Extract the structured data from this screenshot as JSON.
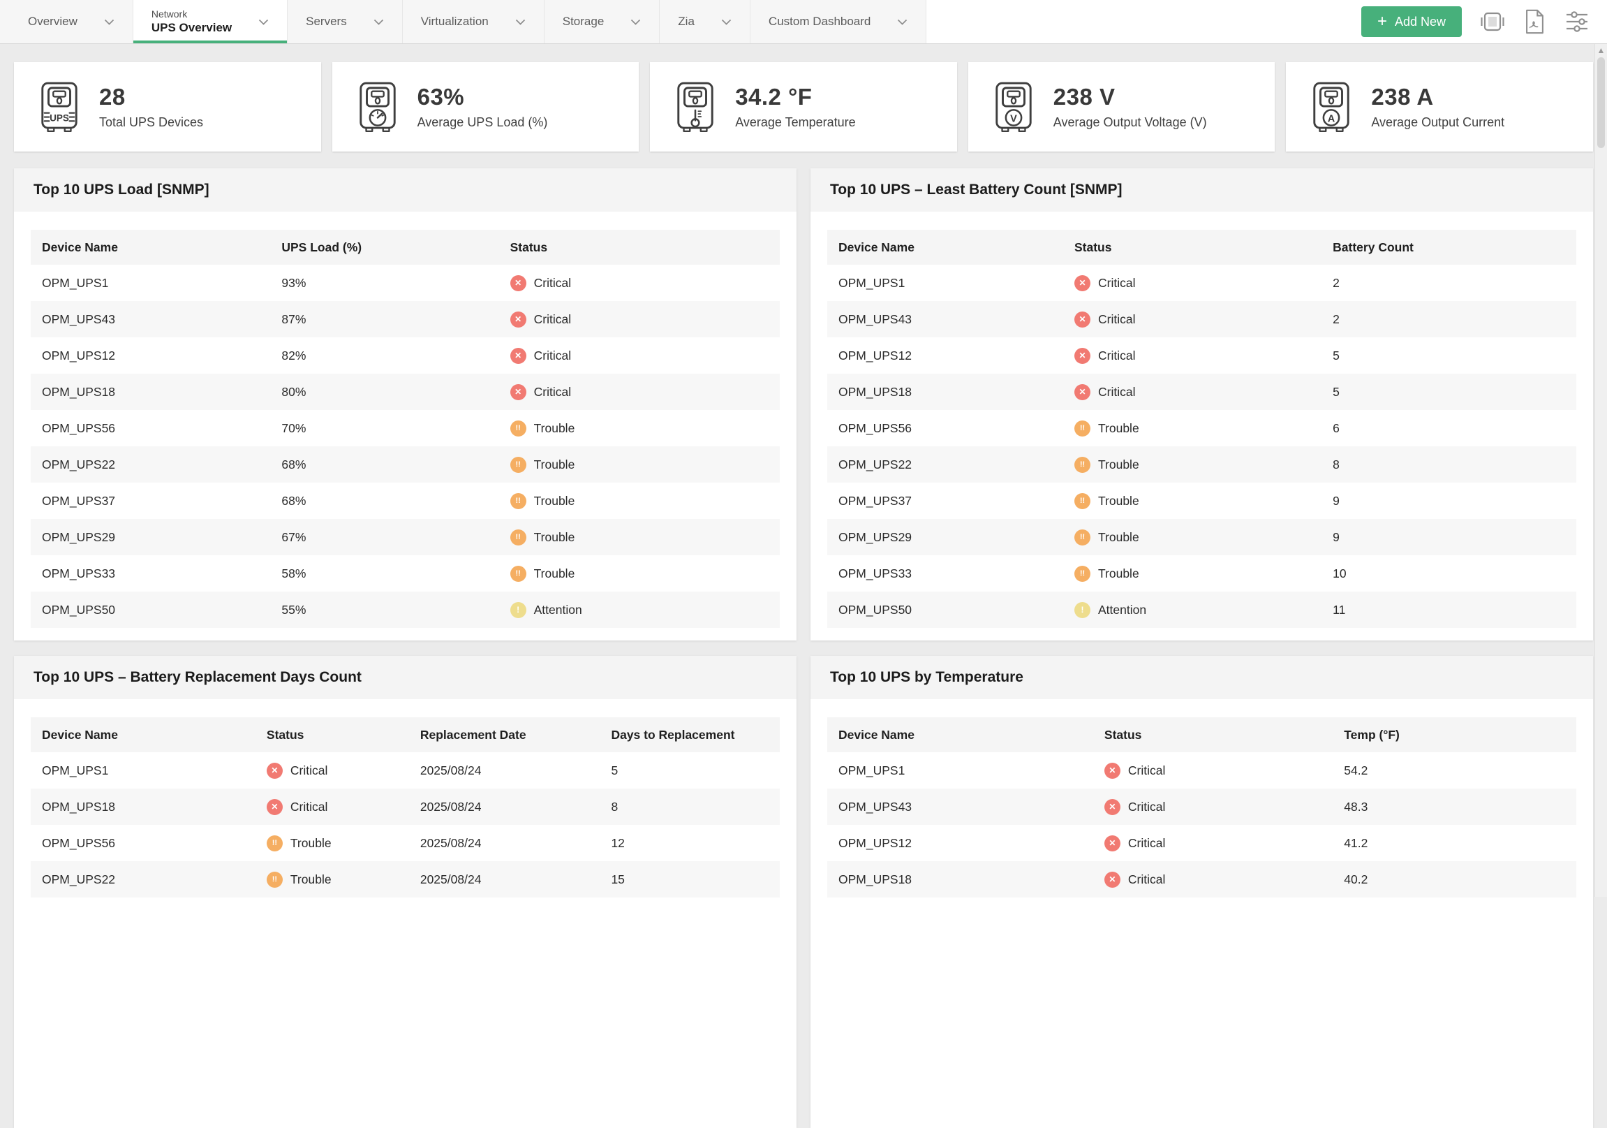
{
  "nav": {
    "accent_green": "#47b07b",
    "tabs": [
      {
        "label": "Overview"
      },
      {
        "super": "Network",
        "label": "UPS Overview",
        "active": true
      },
      {
        "label": "Servers"
      },
      {
        "label": "Virtualization"
      },
      {
        "label": "Storage"
      },
      {
        "label": "Zia"
      },
      {
        "label": "Custom Dashboard"
      }
    ],
    "add_new": {
      "plus": "+",
      "label": "Add New"
    }
  },
  "summary_cards": [
    {
      "value": "28",
      "label": "Total UPS Devices",
      "icon": "ups-device-icon",
      "icon_text": "UPS"
    },
    {
      "value": "63%",
      "label": "Average UPS Load (%)",
      "icon": "ups-load-gauge-icon",
      "icon_text": ""
    },
    {
      "value": "34.2 °F",
      "label": "Average Temperature",
      "icon": "ups-temperature-icon",
      "icon_text": ""
    },
    {
      "value": "238 V",
      "label": "Average Output Voltage (V)",
      "icon": "ups-voltage-icon",
      "icon_text": "V"
    },
    {
      "value": "238 A",
      "label": "Average Output Current",
      "icon": "ups-current-icon",
      "icon_text": "A"
    }
  ],
  "status_icons": {
    "Critical": {
      "glyph": "✕",
      "color": "#f17a72"
    },
    "Trouble": {
      "glyph": "!!",
      "color": "#f5ae62"
    },
    "Attention": {
      "glyph": "!",
      "color": "#eedd8d"
    }
  },
  "panels": [
    {
      "title": "Top 10 UPS Load [SNMP]",
      "columns": [
        "Device Name",
        "UPS Load (%)",
        "Status"
      ],
      "rows": [
        [
          {
            "type": "text",
            "value": "OPM_UPS1"
          },
          {
            "type": "text",
            "value": "93%"
          },
          {
            "type": "status",
            "value": "Critical"
          }
        ],
        [
          {
            "type": "text",
            "value": "OPM_UPS43"
          },
          {
            "type": "text",
            "value": "87%"
          },
          {
            "type": "status",
            "value": "Critical"
          }
        ],
        [
          {
            "type": "text",
            "value": "OPM_UPS12"
          },
          {
            "type": "text",
            "value": "82%"
          },
          {
            "type": "status",
            "value": "Critical"
          }
        ],
        [
          {
            "type": "text",
            "value": "OPM_UPS18"
          },
          {
            "type": "text",
            "value": "80%"
          },
          {
            "type": "status",
            "value": "Critical"
          }
        ],
        [
          {
            "type": "text",
            "value": "OPM_UPS56"
          },
          {
            "type": "text",
            "value": "70%"
          },
          {
            "type": "status",
            "value": "Trouble"
          }
        ],
        [
          {
            "type": "text",
            "value": "OPM_UPS22"
          },
          {
            "type": "text",
            "value": "68%"
          },
          {
            "type": "status",
            "value": "Trouble"
          }
        ],
        [
          {
            "type": "text",
            "value": "OPM_UPS37"
          },
          {
            "type": "text",
            "value": "68%"
          },
          {
            "type": "status",
            "value": "Trouble"
          }
        ],
        [
          {
            "type": "text",
            "value": "OPM_UPS29"
          },
          {
            "type": "text",
            "value": "67%"
          },
          {
            "type": "status",
            "value": "Trouble"
          }
        ],
        [
          {
            "type": "text",
            "value": "OPM_UPS33"
          },
          {
            "type": "text",
            "value": "58%"
          },
          {
            "type": "status",
            "value": "Trouble"
          }
        ],
        [
          {
            "type": "text",
            "value": "OPM_UPS50"
          },
          {
            "type": "text",
            "value": "55%"
          },
          {
            "type": "status",
            "value": "Attention"
          }
        ]
      ]
    },
    {
      "title": "Top 10 UPS – Least Battery Count [SNMP]",
      "columns": [
        "Device Name",
        "Status",
        "Battery Count"
      ],
      "rows": [
        [
          {
            "type": "text",
            "value": "OPM_UPS1"
          },
          {
            "type": "status",
            "value": "Critical"
          },
          {
            "type": "text",
            "value": "2"
          }
        ],
        [
          {
            "type": "text",
            "value": "OPM_UPS43"
          },
          {
            "type": "status",
            "value": "Critical"
          },
          {
            "type": "text",
            "value": "2"
          }
        ],
        [
          {
            "type": "text",
            "value": "OPM_UPS12"
          },
          {
            "type": "status",
            "value": "Critical"
          },
          {
            "type": "text",
            "value": "5"
          }
        ],
        [
          {
            "type": "text",
            "value": "OPM_UPS18"
          },
          {
            "type": "status",
            "value": "Critical"
          },
          {
            "type": "text",
            "value": "5"
          }
        ],
        [
          {
            "type": "text",
            "value": "OPM_UPS56"
          },
          {
            "type": "status",
            "value": "Trouble"
          },
          {
            "type": "text",
            "value": "6"
          }
        ],
        [
          {
            "type": "text",
            "value": "OPM_UPS22"
          },
          {
            "type": "status",
            "value": "Trouble"
          },
          {
            "type": "text",
            "value": "8"
          }
        ],
        [
          {
            "type": "text",
            "value": "OPM_UPS37"
          },
          {
            "type": "status",
            "value": "Trouble"
          },
          {
            "type": "text",
            "value": "9"
          }
        ],
        [
          {
            "type": "text",
            "value": "OPM_UPS29"
          },
          {
            "type": "status",
            "value": "Trouble"
          },
          {
            "type": "text",
            "value": "9"
          }
        ],
        [
          {
            "type": "text",
            "value": "OPM_UPS33"
          },
          {
            "type": "status",
            "value": "Trouble"
          },
          {
            "type": "text",
            "value": "10"
          }
        ],
        [
          {
            "type": "text",
            "value": "OPM_UPS50"
          },
          {
            "type": "status",
            "value": "Attention"
          },
          {
            "type": "text",
            "value": "11"
          }
        ]
      ]
    },
    {
      "title": "Top 10 UPS – Battery Replacement Days Count",
      "columns": [
        "Device Name",
        "Status",
        "Replacement Date",
        "Days to Replacement"
      ],
      "rows": [
        [
          {
            "type": "text",
            "value": "OPM_UPS1"
          },
          {
            "type": "status",
            "value": "Critical"
          },
          {
            "type": "text",
            "value": "2025/08/24"
          },
          {
            "type": "text",
            "value": "5"
          }
        ],
        [
          {
            "type": "text",
            "value": "OPM_UPS18"
          },
          {
            "type": "status",
            "value": "Critical"
          },
          {
            "type": "text",
            "value": "2025/08/24"
          },
          {
            "type": "text",
            "value": "8"
          }
        ],
        [
          {
            "type": "text",
            "value": "OPM_UPS56"
          },
          {
            "type": "status",
            "value": "Trouble"
          },
          {
            "type": "text",
            "value": "2025/08/24"
          },
          {
            "type": "text",
            "value": "12"
          }
        ],
        [
          {
            "type": "text",
            "value": "OPM_UPS22"
          },
          {
            "type": "status",
            "value": "Trouble"
          },
          {
            "type": "text",
            "value": "2025/08/24"
          },
          {
            "type": "text",
            "value": "15"
          }
        ]
      ]
    },
    {
      "title": "Top 10 UPS by Temperature",
      "columns": [
        "Device Name",
        "Status",
        "Temp (°F)"
      ],
      "rows": [
        [
          {
            "type": "text",
            "value": "OPM_UPS1"
          },
          {
            "type": "status",
            "value": "Critical"
          },
          {
            "type": "text",
            "value": "54.2"
          }
        ],
        [
          {
            "type": "text",
            "value": "OPM_UPS43"
          },
          {
            "type": "status",
            "value": "Critical"
          },
          {
            "type": "text",
            "value": "48.3"
          }
        ],
        [
          {
            "type": "text",
            "value": "OPM_UPS12"
          },
          {
            "type": "status",
            "value": "Critical"
          },
          {
            "type": "text",
            "value": "41.2"
          }
        ],
        [
          {
            "type": "text",
            "value": "OPM_UPS18"
          },
          {
            "type": "status",
            "value": "Critical"
          },
          {
            "type": "text",
            "value": "40.2"
          }
        ]
      ]
    }
  ]
}
